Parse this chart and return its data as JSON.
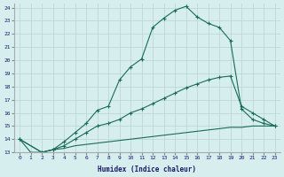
{
  "xlabel": "Humidex (Indice chaleur)",
  "background_color": "#d6eeee",
  "grid_color": "#b8d4d4",
  "line_color": "#1a6b5a",
  "xlim": [
    -0.5,
    23.5
  ],
  "ylim": [
    13,
    24.3
  ],
  "xticks": [
    0,
    1,
    2,
    3,
    4,
    5,
    6,
    7,
    8,
    9,
    10,
    11,
    12,
    13,
    14,
    15,
    16,
    17,
    18,
    19,
    20,
    21,
    22,
    23
  ],
  "yticks": [
    13,
    14,
    15,
    16,
    17,
    18,
    19,
    20,
    21,
    22,
    23,
    24
  ],
  "series": [
    {
      "x": [
        0,
        1,
        2,
        3,
        4,
        5,
        6,
        7,
        8,
        9,
        10,
        11,
        12,
        13,
        14,
        15,
        16,
        17,
        18,
        19,
        20,
        21,
        22,
        23
      ],
      "y": [
        14.0,
        13.0,
        13.0,
        13.2,
        13.3,
        13.5,
        13.6,
        13.7,
        13.8,
        13.9,
        14.0,
        14.1,
        14.2,
        14.3,
        14.4,
        14.5,
        14.6,
        14.7,
        14.8,
        14.9,
        14.9,
        15.0,
        15.0,
        15.0
      ],
      "marker": false
    },
    {
      "x": [
        0,
        2,
        3,
        4,
        5,
        6,
        7,
        8,
        9,
        10,
        11,
        12,
        13,
        14,
        15,
        16,
        17,
        18,
        19,
        20,
        21,
        22,
        23
      ],
      "y": [
        14.0,
        13.0,
        13.2,
        13.5,
        14.0,
        14.5,
        15.0,
        15.2,
        15.5,
        16.0,
        16.3,
        16.7,
        17.1,
        17.5,
        17.9,
        18.2,
        18.5,
        18.7,
        18.8,
        16.5,
        16.0,
        15.5,
        15.0
      ],
      "marker": true
    },
    {
      "x": [
        0,
        2,
        3,
        4,
        5,
        6,
        7,
        8,
        9,
        10,
        11,
        12,
        13,
        14,
        15,
        16,
        17,
        18,
        19,
        20,
        21,
        22,
        23
      ],
      "y": [
        14.0,
        13.0,
        13.2,
        13.8,
        14.5,
        15.2,
        16.2,
        16.5,
        18.5,
        19.5,
        20.1,
        22.5,
        23.2,
        23.8,
        24.1,
        23.3,
        22.8,
        22.5,
        21.5,
        16.3,
        15.5,
        15.2,
        15.0
      ],
      "marker": true
    }
  ]
}
